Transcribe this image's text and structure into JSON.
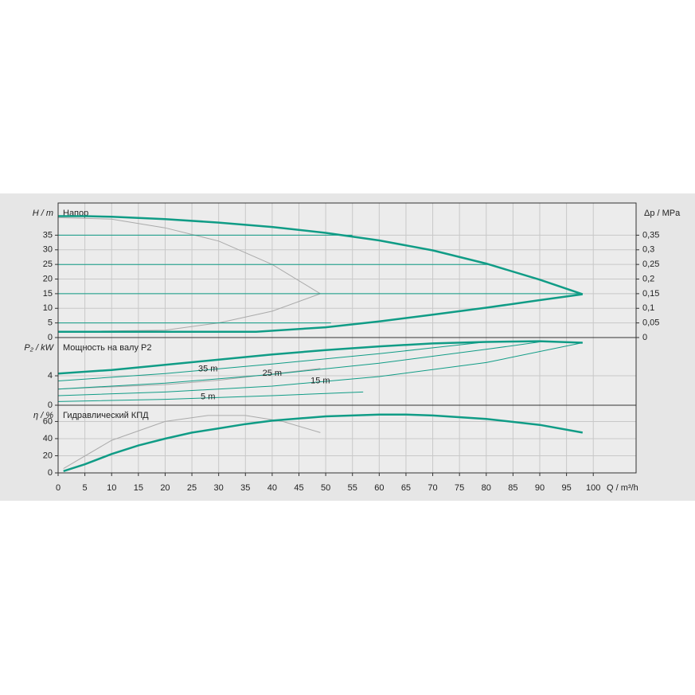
{
  "chart_data": [
    {
      "type": "line",
      "title": "Напор",
      "ylabel": "H / m",
      "y2label": "Δp / MPa",
      "ylim": [
        0,
        46
      ],
      "yticks": [
        0,
        5,
        10,
        15,
        20,
        25,
        30,
        35
      ],
      "y2lim": [
        0,
        0.46
      ],
      "y2ticks": [
        0,
        {
          "value": 0.05,
          "label": "0,05"
        },
        {
          "value": 0.1,
          "label": "0,1"
        },
        {
          "value": 0.15,
          "label": "0,15"
        },
        {
          "value": 0.2,
          "label": "0,2"
        },
        {
          "value": 0.25,
          "label": "0,25"
        },
        {
          "value": 0.3,
          "label": "0,3"
        },
        {
          "value": 0.35,
          "label": "0,35"
        }
      ],
      "series": [
        {
          "color": "#aaaaaa",
          "width": 1,
          "x": [
            0,
            10,
            20,
            30,
            40,
            49
          ],
          "values": [
            41,
            40.5,
            37.5,
            33,
            25,
            15
          ]
        },
        {
          "color": "#aaaaaa",
          "width": 1,
          "x": [
            0,
            20,
            30,
            40,
            49
          ],
          "values": [
            2,
            2.5,
            5,
            9,
            15
          ]
        },
        {
          "color": "#109c86",
          "width": 1,
          "x": [
            0,
            55
          ],
          "values": [
            35,
            35
          ]
        },
        {
          "color": "#109c86",
          "width": 1,
          "x": [
            0,
            81
          ],
          "values": [
            25,
            25
          ]
        },
        {
          "color": "#109c86",
          "width": 1,
          "x": [
            0,
            98
          ],
          "values": [
            15,
            15
          ]
        },
        {
          "color": "#109c86",
          "width": 1,
          "x": [
            0,
            51
          ],
          "values": [
            5,
            5
          ]
        },
        {
          "color": "#109c86",
          "width": 2.5,
          "x": [
            0,
            5,
            10,
            20,
            30,
            40,
            50,
            60,
            70,
            80,
            90,
            98
          ],
          "values": [
            41.5,
            41.5,
            41.3,
            40.5,
            39.3,
            37.8,
            35.8,
            33.2,
            29.8,
            25.3,
            19.8,
            14.8
          ]
        },
        {
          "color": "#109c86",
          "width": 2.5,
          "x": [
            0,
            37,
            50,
            60,
            70,
            80,
            90,
            98
          ],
          "values": [
            2,
            2,
            3.5,
            5.5,
            7.8,
            10.2,
            12.8,
            14.8
          ]
        }
      ]
    },
    {
      "type": "line",
      "title": "Мощность на валу P2",
      "ylabel": "P₂ / kW",
      "ylim": [
        0,
        9.2
      ],
      "yticks": [
        0,
        4
      ],
      "series": [
        {
          "color": "#aaaaaa",
          "width": 1,
          "x": [
            0,
            20,
            30,
            49
          ],
          "values": [
            2.2,
            2.8,
            3.4,
            5
          ]
        },
        {
          "color": "#109c86",
          "width": 1,
          "label": "35 m",
          "x": [
            0,
            20,
            40,
            60,
            70,
            80
          ],
          "values": [
            3.3,
            4.3,
            5.6,
            7,
            7.8,
            8.6
          ]
        },
        {
          "color": "#109c86",
          "width": 1,
          "label": "25 m",
          "x": [
            0,
            20,
            40,
            60,
            80,
            90
          ],
          "values": [
            2.2,
            3,
            4.2,
            5.7,
            7.6,
            8.6
          ]
        },
        {
          "color": "#109c86",
          "width": 1,
          "label": "15 m",
          "x": [
            0,
            20,
            40,
            60,
            80,
            98
          ],
          "values": [
            1.3,
            1.8,
            2.6,
            3.9,
            5.8,
            8.5
          ]
        },
        {
          "color": "#109c86",
          "width": 1,
          "label": "5 m",
          "x": [
            0,
            20,
            40,
            57
          ],
          "values": [
            0.5,
            0.8,
            1.3,
            1.8
          ]
        },
        {
          "color": "#109c86",
          "width": 2.5,
          "x": [
            0,
            10,
            20,
            30,
            40,
            50,
            60,
            70,
            80,
            90,
            98
          ],
          "values": [
            4.3,
            4.8,
            5.5,
            6.2,
            6.9,
            7.5,
            8,
            8.4,
            8.6,
            8.7,
            8.5
          ]
        }
      ]
    },
    {
      "type": "line",
      "title": "Гидравлический КПД",
      "ylabel": "η / %",
      "xlabel": "Q / m³/h",
      "xlim": [
        0,
        108
      ],
      "xticks": [
        0,
        5,
        10,
        15,
        20,
        25,
        30,
        35,
        40,
        45,
        50,
        55,
        60,
        65,
        70,
        75,
        80,
        85,
        90,
        95,
        100
      ],
      "ylim": [
        0,
        79
      ],
      "yticks": [
        0,
        20,
        40,
        60
      ],
      "series": [
        {
          "color": "#aaaaaa",
          "width": 1,
          "x": [
            1,
            10,
            20,
            28,
            35,
            42,
            49
          ],
          "values": [
            5,
            38,
            60,
            67,
            67,
            60,
            47
          ]
        },
        {
          "color": "#109c86",
          "width": 2.5,
          "x": [
            1,
            5,
            10,
            15,
            20,
            25,
            30,
            35,
            40,
            50,
            60,
            65,
            70,
            80,
            90,
            98
          ],
          "values": [
            2,
            10,
            22,
            32,
            40,
            47,
            52,
            57,
            61,
            66,
            68,
            68,
            67,
            63,
            56,
            47
          ]
        }
      ]
    }
  ]
}
